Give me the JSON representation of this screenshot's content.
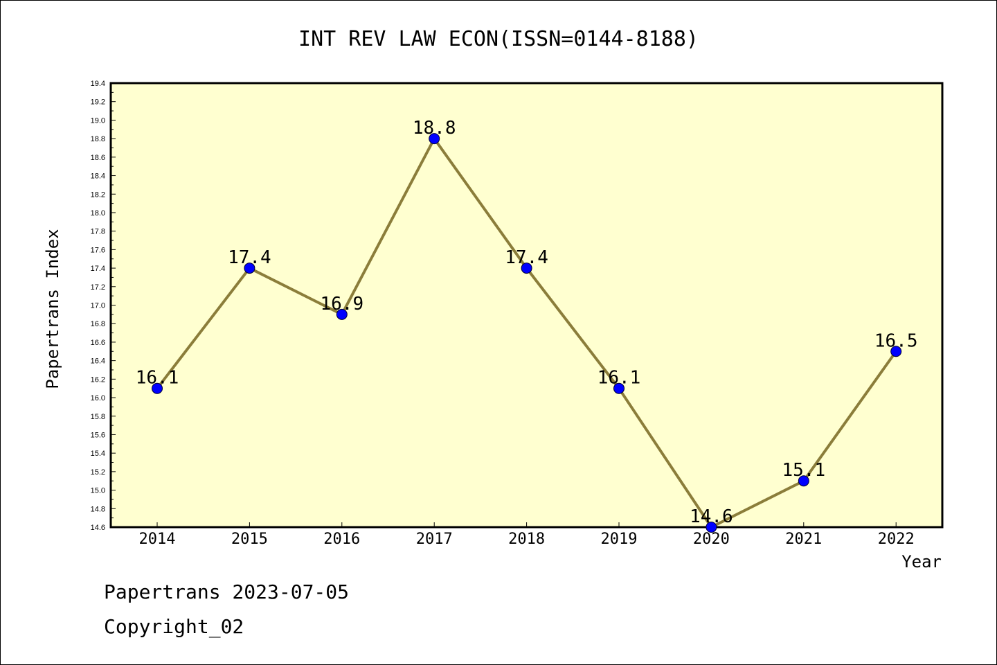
{
  "chart_data": {
    "type": "line",
    "title": "INT REV LAW ECON(ISSN=0144-8188)",
    "xlabel": "Year",
    "ylabel": "Papertrans Index",
    "categories": [
      "2014",
      "2015",
      "2016",
      "2017",
      "2018",
      "2019",
      "2020",
      "2021",
      "2022"
    ],
    "values": [
      16.1,
      17.4,
      16.9,
      18.8,
      17.4,
      16.1,
      14.6,
      15.1,
      16.5
    ],
    "data_labels": [
      "16.1",
      "17.4",
      "16.9",
      "18.8",
      "17.4",
      "16.1",
      "14.6",
      "15.1",
      "16.5"
    ],
    "ylim": [
      14.6,
      19.4
    ],
    "yticks": [
      "14.6",
      "14.8",
      "15.0",
      "15.2",
      "15.4",
      "15.6",
      "15.8",
      "16.0",
      "16.2",
      "16.4",
      "16.6",
      "16.8",
      "17.0",
      "17.2",
      "17.4",
      "17.6",
      "17.8",
      "18.0",
      "18.2",
      "18.4",
      "18.6",
      "18.8",
      "19.0",
      "19.2",
      "19.4"
    ],
    "grid": false,
    "line_color": "#8b7d3a",
    "marker_color": "#0000ff",
    "plot_background": "#ffffd0"
  },
  "footer": {
    "line1": "Papertrans 2023-07-05",
    "line2": "Copyright_02"
  }
}
